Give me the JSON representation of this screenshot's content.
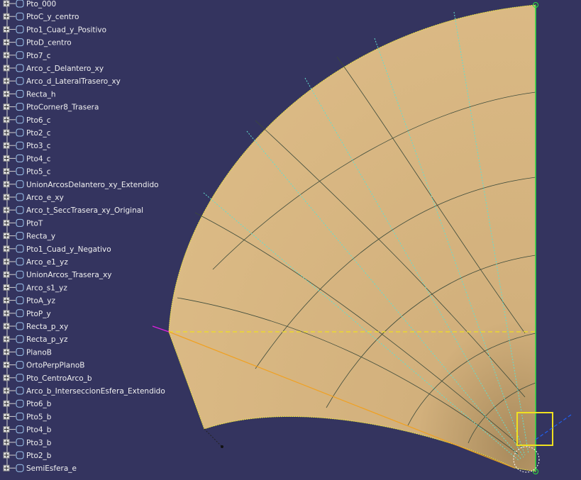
{
  "tree": {
    "items": [
      "Pto_000",
      "PtoC_y_centro",
      "Pto1_Cuad_y_Positivo",
      "PtoD_centro",
      "Pto7_c",
      "Arco_c_Delantero_xy",
      "Arco_d_LateralTrasero_xy",
      "Recta_h",
      "PtoCorner8_Trasera",
      "Pto6_c",
      "Pto2_c",
      "Pto3_c",
      "Pto4_c",
      "Pto5_c",
      "UnionArcosDelantero_xy_Extendido",
      "Arco_e_xy",
      "Arco_t_SeccTrasera_xy_Original",
      "PtoT",
      "Recta_y",
      "Pto1_Cuad_y_Negativo",
      "Arco_e1_yz",
      "UnionArcos_Trasera_xy",
      "Arco_s1_yz",
      "PtoA_yz",
      "PtoP_y",
      "Recta_p_xy",
      "Recta_p_yz",
      "PlanoB",
      "OrtoPerpPlanoB",
      "Pto_CentroArco_b",
      "Arco_b_InterseccionEsfera_Extendido",
      "Pto6_b",
      "Pto5_b",
      "Pto4_b",
      "Pto3_b",
      "Pto2_b",
      "SemiEsfera_e"
    ]
  }
}
